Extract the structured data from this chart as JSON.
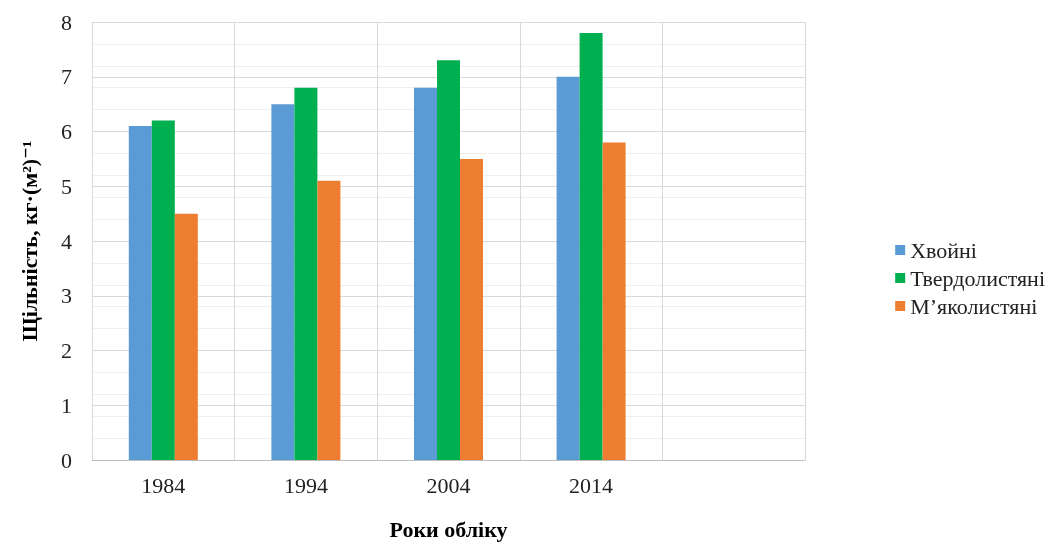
{
  "chart_data": {
    "type": "bar",
    "xlabel": "Роки обліку",
    "ylabel": "Щільність, кг·(м²)⁻¹",
    "categories": [
      "1984",
      "1994",
      "2004",
      "2014",
      null
    ],
    "series": [
      {
        "name": "Хвойні",
        "color": "#5b9bd5",
        "values": [
          6.1,
          6.5,
          6.8,
          7.0,
          null
        ]
      },
      {
        "name": "Твердолистяні",
        "color": "#00b050",
        "values": [
          6.2,
          6.8,
          7.3,
          7.8,
          null
        ]
      },
      {
        "name": "М’яколистяні",
        "color": "#ed7d31",
        "values": [
          4.5,
          5.1,
          5.5,
          5.8,
          null
        ]
      }
    ],
    "ylim": [
      0,
      8
    ],
    "yticks": [
      0,
      1,
      2,
      3,
      4,
      5,
      6,
      7,
      8
    ],
    "grid": true,
    "legend": "right"
  }
}
